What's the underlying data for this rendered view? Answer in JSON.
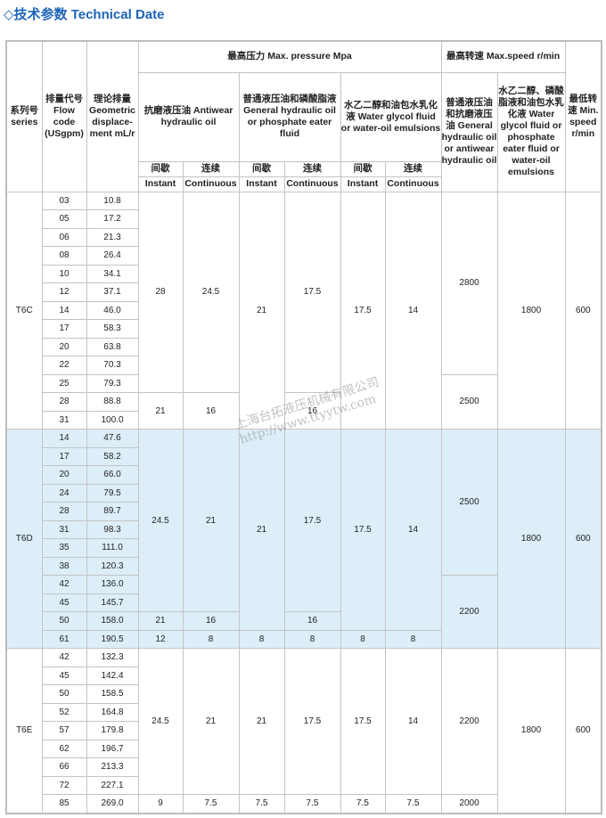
{
  "title": "◇技术参数 Technical Date",
  "watermark": {
    "line1": "上海台拓液压机械有限公司",
    "line2": "http://www.ttyytw.com"
  },
  "header": {
    "series": "系列号 series",
    "flow": "排量代号 Flow code (USgpm)",
    "disp": "理论排量 Geometric displace-ment mL/r",
    "max_pressure": "最高压力 Max. pressure Mpa",
    "max_speed": "最高转速 Max.speed r/min",
    "min_speed": "最低转速 Min. speed r/min",
    "antiwear": "抗磨液压油 Antiwear hydraulic oil",
    "general": "普通液压油和磷酸脂液 General hydraulic oil or phosphate eater fluid",
    "water": "水乙二醇和油包水乳化液 Water glycol fluid or water-oil emulsions",
    "speed_general": "普通液压油和抗磨液压油 General hydraulic oil or antiwear hydraulic oil",
    "speed_water": "水乙二醇、磷酸脂液和油包水乳化液 Water glycol fluid or phosphate eater fluid or water-oil emulsions",
    "intermittent_cn": "间歇",
    "continuous_cn": "连续",
    "instant": "Instant",
    "continuous": "Continuous"
  },
  "series": [
    {
      "name": "T6C",
      "codes": [
        "03",
        "05",
        "06",
        "08",
        "10",
        "12",
        "14",
        "17",
        "20",
        "22",
        "25",
        "28",
        "31"
      ],
      "disp": [
        "10.8",
        "17.2",
        "21.3",
        "26.4",
        "34.1",
        "37.1",
        "46.0",
        "58.3",
        "63.8",
        "70.3",
        "79.3",
        "88.8",
        "100.0"
      ],
      "merged": [
        [
          [
            "28",
            11
          ],
          [
            "21",
            2
          ]
        ],
        [
          [
            "24.5",
            11
          ],
          [
            "16",
            2
          ]
        ],
        [
          [
            "21",
            13
          ]
        ],
        [
          [
            "17.5",
            11
          ],
          [
            "16",
            2
          ]
        ],
        [
          [
            "17.5",
            13
          ]
        ],
        [
          [
            "14",
            13
          ]
        ],
        [
          [
            "2800",
            10
          ],
          [
            "2500",
            3
          ]
        ],
        [
          [
            "1800",
            13
          ]
        ],
        [
          [
            "600",
            13
          ]
        ]
      ]
    },
    {
      "name": "T6D",
      "codes": [
        "14",
        "17",
        "20",
        "24",
        "28",
        "31",
        "35",
        "38",
        "42",
        "45",
        "50",
        "61"
      ],
      "disp": [
        "47.6",
        "58.2",
        "66.0",
        "79.5",
        "89.7",
        "98.3",
        "111.0",
        "120.3",
        "136.0",
        "145.7",
        "158.0",
        "190.5"
      ],
      "merged": [
        [
          [
            "24.5",
            10
          ],
          [
            "21",
            1
          ],
          [
            "12",
            1
          ]
        ],
        [
          [
            "21",
            10
          ],
          [
            "16",
            1
          ],
          [
            "8",
            1
          ]
        ],
        [
          [
            "21",
            11
          ],
          [
            "8",
            1
          ]
        ],
        [
          [
            "17.5",
            10
          ],
          [
            "16",
            1
          ],
          [
            "8",
            1
          ]
        ],
        [
          [
            "17.5",
            11
          ],
          [
            "8",
            1
          ]
        ],
        [
          [
            "14",
            11
          ],
          [
            "8",
            1
          ]
        ],
        [
          [
            "2500",
            8
          ],
          [
            "2200",
            4
          ]
        ],
        [
          [
            "1800",
            12
          ]
        ],
        [
          [
            "600",
            12
          ]
        ]
      ]
    },
    {
      "name": "T6E",
      "codes": [
        "42",
        "45",
        "50",
        "52",
        "57",
        "62",
        "66",
        "72",
        "85"
      ],
      "disp": [
        "132.3",
        "142.4",
        "158.5",
        "164.8",
        "179.8",
        "196.7",
        "213.3",
        "227.1",
        "269.0"
      ],
      "merged": [
        [
          [
            "24.5",
            8
          ],
          [
            "9",
            1
          ]
        ],
        [
          [
            "21",
            8
          ],
          [
            "7.5",
            1
          ]
        ],
        [
          [
            "21",
            8
          ],
          [
            "7.5",
            1
          ]
        ],
        [
          [
            "17.5",
            8
          ],
          [
            "7.5",
            1
          ]
        ],
        [
          [
            "17.5",
            8
          ],
          [
            "7.5",
            1
          ]
        ],
        [
          [
            "14",
            8
          ],
          [
            "7.5",
            1
          ]
        ],
        [
          [
            "2200",
            8
          ],
          [
            "2000",
            1
          ]
        ],
        [
          [
            "1800",
            9
          ]
        ],
        [
          [
            "600",
            9
          ]
        ]
      ]
    }
  ]
}
